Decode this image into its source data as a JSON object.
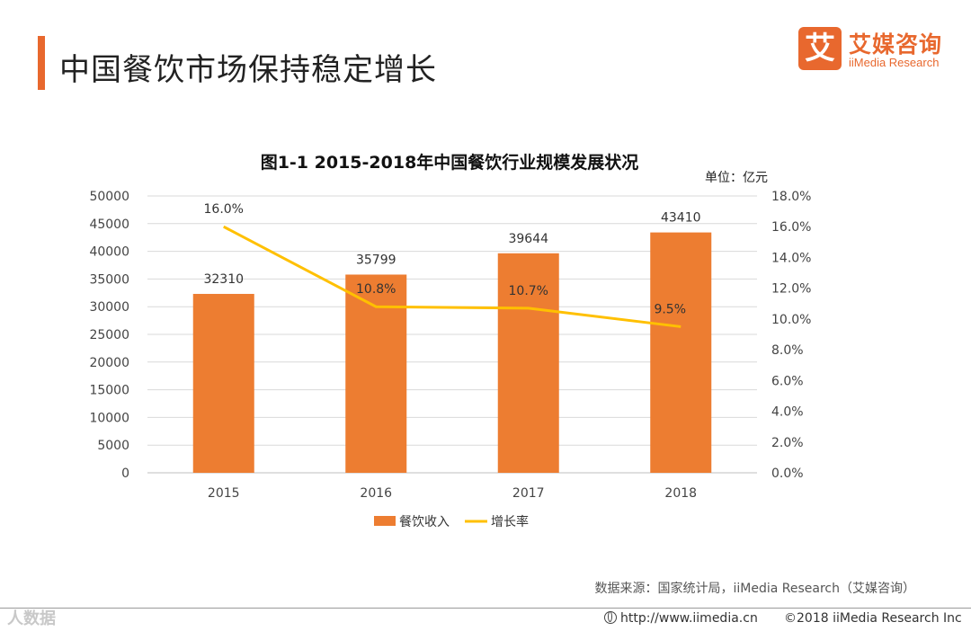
{
  "header": {
    "title": "中国餐饮市场保持稳定增长"
  },
  "logo": {
    "mark": "艾",
    "name_cn": "艾媒咨询",
    "name_en": "iiMedia Research"
  },
  "colors": {
    "accent": "#e8682e",
    "bar": "#ed7d31",
    "line": "#ffc000",
    "grid": "#d9d9d9"
  },
  "chart_data": {
    "type": "bar",
    "title": "图1-1 2015-2018年中国餐饮行业规模发展状况",
    "unit_label": "单位：亿元",
    "categories": [
      "2015",
      "2016",
      "2017",
      "2018"
    ],
    "series": [
      {
        "name": "餐饮收入",
        "type": "bar",
        "axis": "left",
        "values": [
          32310,
          35799,
          39644,
          43410
        ],
        "labels": [
          "32310",
          "35799",
          "39644",
          "43410"
        ]
      },
      {
        "name": "增长率",
        "type": "line",
        "axis": "right",
        "values": [
          16.0,
          10.8,
          10.7,
          9.5
        ],
        "labels": [
          "16.0%",
          "10.8%",
          "10.7%",
          "9.5%"
        ]
      }
    ],
    "y_left": {
      "min": 0,
      "max": 50000,
      "step": 5000,
      "ticks": [
        "0",
        "5000",
        "10000",
        "15000",
        "20000",
        "25000",
        "30000",
        "35000",
        "40000",
        "45000",
        "50000"
      ]
    },
    "y_right": {
      "min": 0,
      "max": 18,
      "step": 2,
      "ticks": [
        "0.0%",
        "2.0%",
        "4.0%",
        "6.0%",
        "8.0%",
        "10.0%",
        "12.0%",
        "14.0%",
        "16.0%",
        "18.0%"
      ]
    },
    "legend": [
      "餐饮收入",
      "增长率"
    ],
    "legend_position": "bottom",
    "grid": true
  },
  "source": "数据来源：国家统计局，iiMedia Research（艾媒咨询）",
  "footer": {
    "watermark": "人数据",
    "url": "http://www.iimedia.cn",
    "copyright": "©2018  iiMedia Research Inc"
  }
}
